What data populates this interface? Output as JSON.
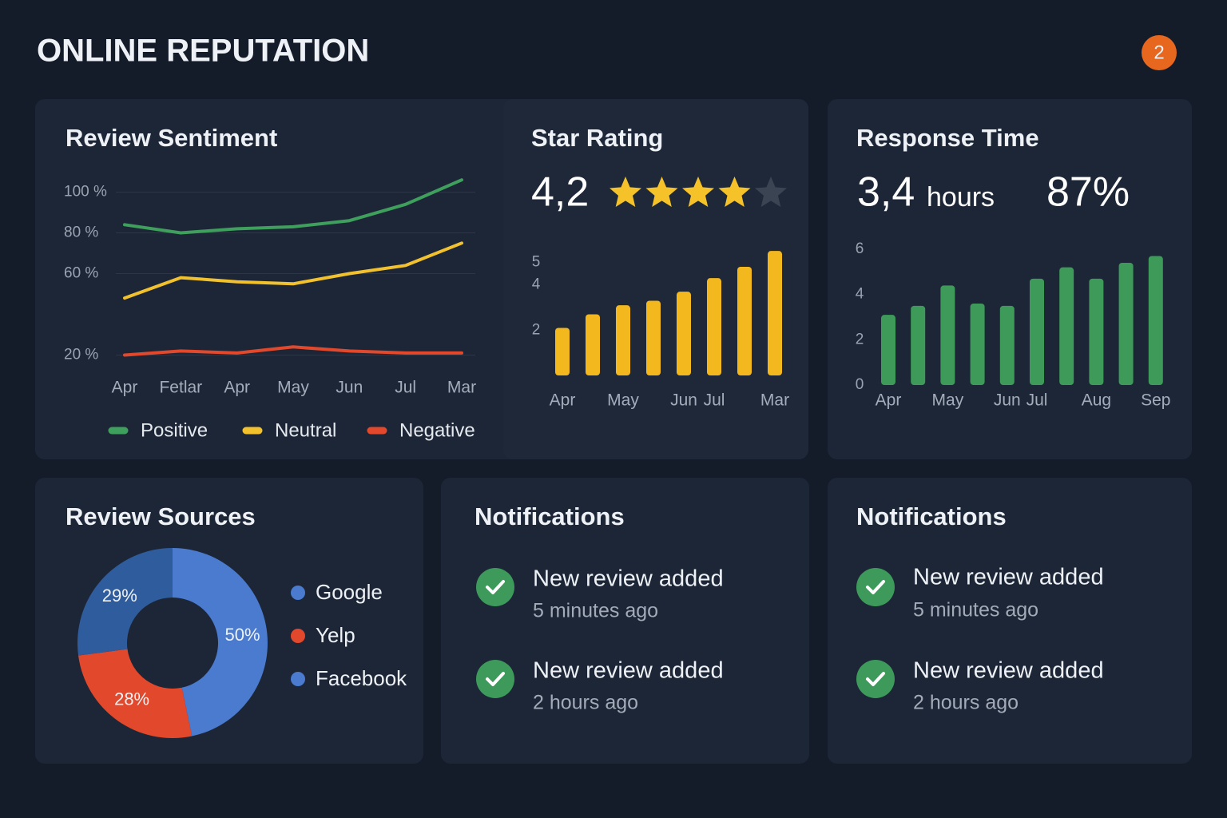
{
  "header": {
    "title": "ONLINE REPUTATION",
    "badge": 2
  },
  "chart_data": [
    {
      "type": "line",
      "title": "Review Sentiment",
      "categories": [
        "Apr",
        "Fetlar",
        "Apr",
        "May",
        "Jun",
        "Jul",
        "Mar"
      ],
      "series": [
        {
          "name": "Positive",
          "color": "#3f9f5c",
          "values": [
            84,
            80,
            82,
            83,
            86,
            94,
            106
          ]
        },
        {
          "name": "Neutral",
          "color": "#f2c12e",
          "values": [
            48,
            58,
            56,
            55,
            60,
            64,
            75
          ]
        },
        {
          "name": "Negative",
          "color": "#e2482b",
          "values": [
            20,
            22,
            21,
            24,
            22,
            21,
            21
          ]
        }
      ],
      "ylim": [
        10,
        110
      ],
      "yticks": [
        {
          "value": 100,
          "label": "100 %"
        },
        {
          "value": 80,
          "label": "80 %"
        },
        {
          "value": 60,
          "label": "60 %"
        },
        {
          "value": 20,
          "label": "20 %"
        }
      ],
      "grid": true,
      "legend": "bottom"
    },
    {
      "type": "bar",
      "title": "Star Rating",
      "headline": "4,2",
      "categories": [
        "Apr",
        null,
        "May",
        null,
        "Jun",
        "Jul",
        null,
        "Mar"
      ],
      "values": [
        2.1,
        2.7,
        3.1,
        3.3,
        3.7,
        4.3,
        4.8,
        5.5
      ],
      "color": "#f4b81f",
      "ylim": [
        0,
        6
      ],
      "yticks": [
        2,
        4,
        5
      ]
    },
    {
      "type": "bar",
      "title": "Response Time",
      "headline": "3,4",
      "headline_unit": "hours",
      "secondary": "87%",
      "categories": [
        "Apr",
        null,
        "May",
        null,
        "Jun",
        "Jul",
        null,
        "Aug",
        null,
        "Sep"
      ],
      "values": [
        3.1,
        3.5,
        4.4,
        3.6,
        3.5,
        4.7,
        5.2,
        4.7,
        5.4,
        5.7
      ],
      "color": "#3d9a58",
      "ylim": [
        0,
        6
      ],
      "yticks": [
        0,
        2,
        4,
        6
      ]
    },
    {
      "type": "pie",
      "title": "Review Sources",
      "categories": [
        "Google",
        "Yelp",
        "Facebook"
      ],
      "values": [
        50,
        28,
        29
      ],
      "value_labels": [
        "50%",
        "28%",
        "29%"
      ],
      "colors": [
        "#4a7bcf",
        "#e2482b",
        "#2f5c9c"
      ],
      "legend_colors": [
        "#4a7bcf",
        "#e2482b",
        "#4a7bcf"
      ],
      "donut": true
    }
  ],
  "notifications": [
    {
      "title": "Notifications",
      "items": [
        {
          "text": "New review added",
          "time": "5 minutes ago"
        },
        {
          "text": "New review added",
          "time": "2 hours ago"
        }
      ]
    },
    {
      "title": "Notifications",
      "items": [
        {
          "text": "New review added",
          "time": "5 minutes ago"
        },
        {
          "text": "New review added",
          "time": "2 hours ago"
        }
      ]
    }
  ]
}
